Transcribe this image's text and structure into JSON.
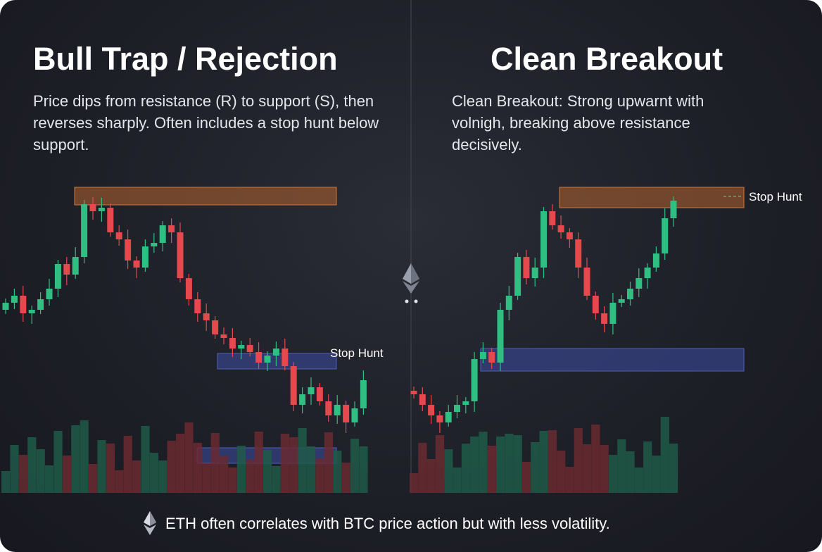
{
  "panels": [
    {
      "title": "Bull Trap / Rejection",
      "description": "Price dips from resistance (R) to support (S), then reverses sharply. Often includes a stop hunt below support.",
      "annotation": "Stop Hunt"
    },
    {
      "title": "Clean Breakout",
      "description": "Clean Breakout: Strong upwarnt with volnigh, breaking above resistance decisively.",
      "annotation": "Stop Hunt"
    }
  ],
  "footer": "ETH often correlates with BTC price action but with less volatility."
}
